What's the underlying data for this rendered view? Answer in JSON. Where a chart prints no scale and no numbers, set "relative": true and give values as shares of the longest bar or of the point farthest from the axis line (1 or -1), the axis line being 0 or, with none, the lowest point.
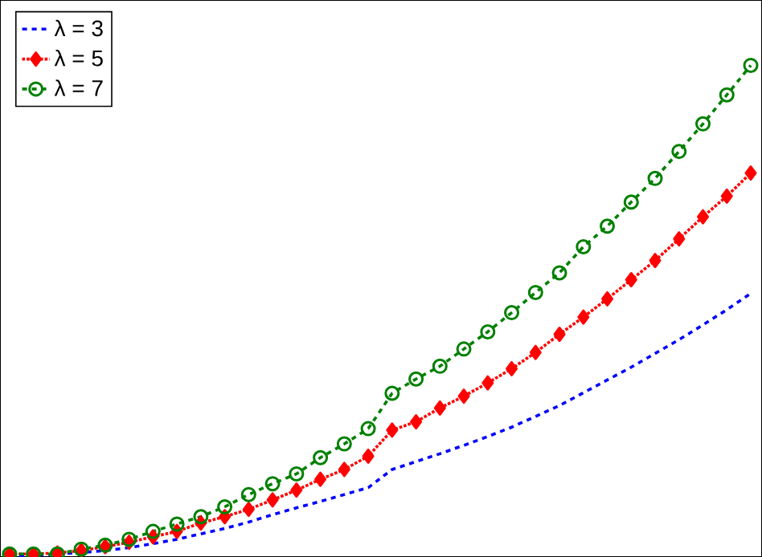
{
  "chart_data": {
    "type": "line",
    "relative": true,
    "legend": "top left",
    "categories": [
      null,
      null,
      null,
      null,
      null,
      null,
      null,
      null,
      null,
      null,
      null,
      null,
      null,
      null,
      null,
      null,
      null,
      null,
      null,
      null,
      null,
      null,
      null,
      null,
      null,
      null,
      null,
      null,
      null,
      null,
      null,
      null
    ],
    "series": [
      {
        "name": "λ = 3",
        "color": "#0000ff",
        "line_style": "dashed",
        "marker": "none",
        "values": [
          0.002,
          0.003,
          0.006,
          0.009,
          0.013,
          0.019,
          0.027,
          0.036,
          0.047,
          0.058,
          0.071,
          0.086,
          0.1,
          0.113,
          0.127,
          0.141,
          0.178,
          0.194,
          0.21,
          0.227,
          0.245,
          0.264,
          0.286,
          0.308,
          0.334,
          0.36,
          0.386,
          0.414,
          0.442,
          0.472,
          0.503,
          0.536
        ]
      },
      {
        "name": "λ = 5",
        "color": "#ff0000",
        "line_style": "dotted",
        "marker": "diamond",
        "values": [
          0.006,
          0.006,
          0.008,
          0.013,
          0.021,
          0.03,
          0.041,
          0.052,
          0.069,
          0.082,
          0.097,
          0.116,
          0.136,
          0.158,
          0.178,
          0.205,
          0.258,
          0.275,
          0.303,
          0.327,
          0.354,
          0.383,
          0.416,
          0.453,
          0.488,
          0.525,
          0.564,
          0.603,
          0.647,
          0.692,
          0.734,
          0.781
        ]
      },
      {
        "name": "λ = 7",
        "color": "#008000",
        "line_style": "dashed",
        "marker": "circle",
        "values": [
          0.006,
          0.006,
          0.006,
          0.016,
          0.024,
          0.036,
          0.052,
          0.067,
          0.082,
          0.102,
          0.127,
          0.149,
          0.169,
          0.202,
          0.23,
          0.261,
          0.333,
          0.362,
          0.388,
          0.423,
          0.458,
          0.497,
          0.538,
          0.578,
          0.631,
          0.673,
          0.722,
          0.77,
          0.825,
          0.881,
          0.94,
          1
        ]
      }
    ]
  }
}
